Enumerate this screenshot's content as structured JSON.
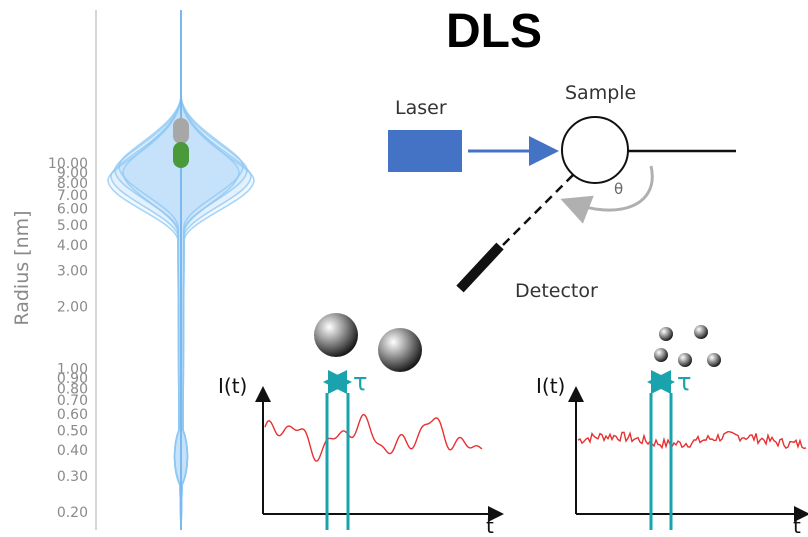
{
  "title": "DLS",
  "setup": {
    "laser_label": "Laser",
    "sample_label": "Sample",
    "detector_label": "Detector",
    "angle_label": "θ",
    "colors": {
      "laser": "#4472c4",
      "arrow": "#4472c4",
      "angle_arrow": "#b0b0b0",
      "detector": "#000000"
    }
  },
  "violin": {
    "ylabel": "Radius [nm]",
    "ticks": [
      "10.00",
      "9.00",
      "8.00",
      "7.00",
      "6.00",
      "5.00",
      "4.00",
      "3.00",
      "2.00",
      "1.00",
      "0.90",
      "0.80",
      "0.70",
      "0.60",
      "0.50",
      "0.40",
      "0.30",
      "0.20"
    ],
    "colors": {
      "violin": "#8ec8f3",
      "marker_gray": "#a7a7a7",
      "marker_green": "#4a9a3a"
    }
  },
  "signals": [
    {
      "name": "large-particles",
      "ylabel": "I(t)",
      "xlabel": "t",
      "tau": "τ",
      "particles": "large",
      "color": "#e83030"
    },
    {
      "name": "small-particles",
      "ylabel": "I(t)",
      "xlabel": "t",
      "tau": "τ",
      "particles": "small",
      "color": "#e83030"
    }
  ],
  "accent": "#1aa3ad"
}
